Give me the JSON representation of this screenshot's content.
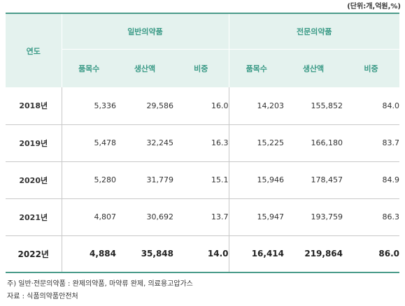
{
  "unit": "(단위:개,억원,%)",
  "header": {
    "year": "연도",
    "groups": [
      "일반의약품",
      "전문의약품"
    ],
    "sub": [
      "품목수",
      "생산액",
      "비중",
      "품목수",
      "생산액",
      "비중"
    ]
  },
  "rows": [
    {
      "year": "2018년",
      "values": [
        "5,336",
        "29,586",
        "16.0",
        "14,203",
        "155,852",
        "84.0"
      ]
    },
    {
      "year": "2019년",
      "values": [
        "5,478",
        "32,245",
        "16.3",
        "15,225",
        "166,180",
        "83.7"
      ]
    },
    {
      "year": "2020년",
      "values": [
        "5,280",
        "31,779",
        "15.1",
        "15,946",
        "178,457",
        "84.9"
      ]
    },
    {
      "year": "2021년",
      "values": [
        "4,807",
        "30,692",
        "13.7",
        "15,947",
        "193,759",
        "86.3"
      ]
    },
    {
      "year": "2022년",
      "values": [
        "4,884",
        "35,848",
        "14.0",
        "16,414",
        "219,864",
        "86.0"
      ]
    }
  ],
  "notes": {
    "note": "주) 일반·전문의약품 : 완제의약품, 마약류 완제, 의료용고압가스",
    "source": "자료 : 식품의약품안전처"
  }
}
